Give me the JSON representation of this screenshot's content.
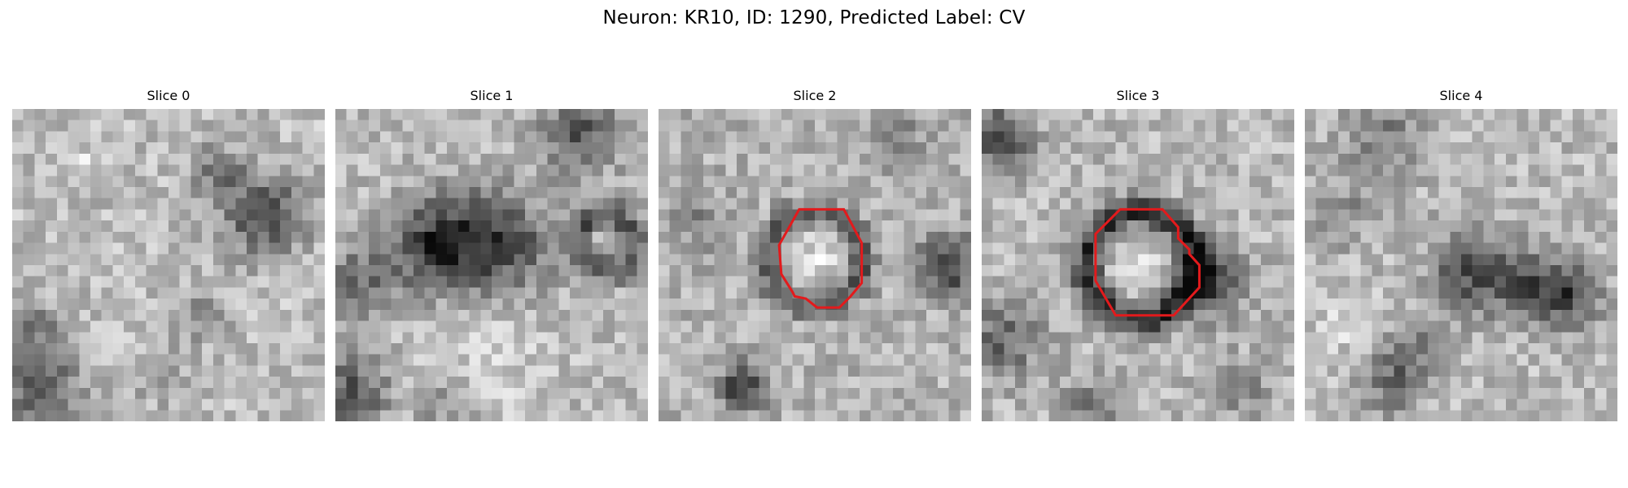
{
  "figure": {
    "title": "Neuron: KR10, ID: 1290, Predicted Label: CV"
  },
  "colors": {
    "colormap": "gray",
    "contour": "#e31a1c",
    "background": "#ffffff"
  },
  "panels": [
    {
      "title": "Slice 0",
      "has_contour": false
    },
    {
      "title": "Slice 1",
      "has_contour": false
    },
    {
      "title": "Slice 2",
      "has_contour": true
    },
    {
      "title": "Slice 3",
      "has_contour": true
    },
    {
      "title": "Slice 4",
      "has_contour": false
    }
  ]
}
